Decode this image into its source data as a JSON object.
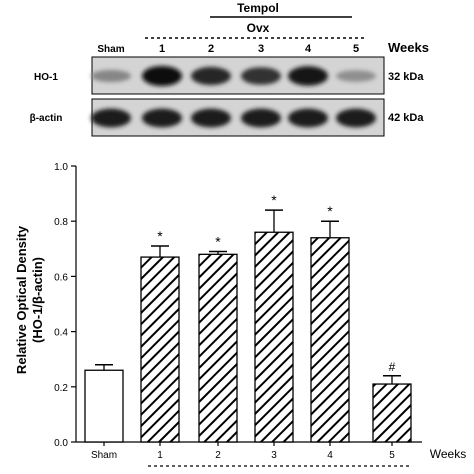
{
  "blot": {
    "tempol_label": "Tempol",
    "ovx_label": "Ovx",
    "weeks_label": "Weeks",
    "lane_labels": [
      "Sham",
      "1",
      "2",
      "3",
      "4",
      "5"
    ],
    "rows": [
      {
        "name": "HO-1",
        "kda": "32 kDa",
        "intensity": [
          0.35,
          1.0,
          0.85,
          0.8,
          0.95,
          0.3
        ]
      },
      {
        "name": "β-actin",
        "kda": "42 kDa",
        "intensity": [
          0.9,
          0.9,
          0.9,
          0.9,
          0.9,
          0.9
        ]
      }
    ]
  },
  "chart_data": {
    "type": "bar",
    "categories": [
      "Sham",
      "1",
      "2",
      "3",
      "4",
      "5"
    ],
    "values": [
      0.26,
      0.67,
      0.68,
      0.76,
      0.74,
      0.21
    ],
    "errors": [
      0.02,
      0.04,
      0.01,
      0.08,
      0.06,
      0.03
    ],
    "annotations": [
      "",
      "*",
      "*",
      "*",
      "*",
      "#"
    ],
    "ylabel_line1": "Relative Optical Density",
    "ylabel_line2": "(HO-1/β-actin)",
    "xlabel": "Weeks",
    "ylim": [
      0,
      1.0
    ],
    "yticks": [
      "0.0",
      "0.2",
      "0.4",
      "0.6",
      "0.8",
      "1.0"
    ],
    "fill_styles": [
      "open",
      "hatched",
      "hatched",
      "hatched",
      "hatched",
      "hatched"
    ],
    "grid": false
  }
}
